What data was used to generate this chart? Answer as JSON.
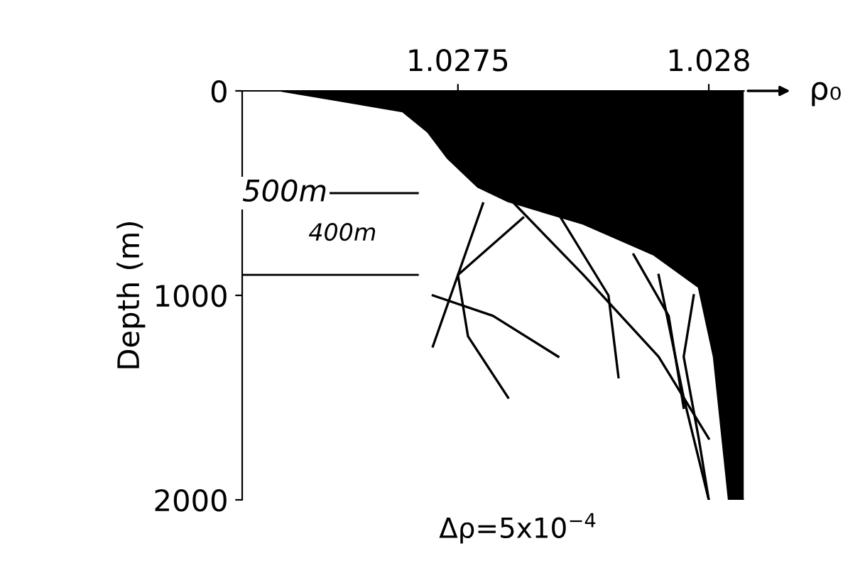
{
  "chart_data": {
    "type": "line",
    "xlabel": "ρ₀",
    "ylabel": "Depth (m)",
    "xlim": [
      1.02707,
      1.02807
    ],
    "xticks": [
      1.0275,
      1.028
    ],
    "ylim": [
      2000,
      0
    ],
    "yticks": [
      0,
      1000,
      2000
    ],
    "grid": false,
    "legend": false,
    "marker": "none",
    "line_style": "solid",
    "series": [
      {
        "type": "area",
        "color": "#000000",
        "values": [
          0,
          100,
          200,
          330,
          470,
          540,
          650,
          800,
          960,
          1300,
          2000,
          2000
        ],
        "x": [
          1.02715,
          1.02739,
          1.02744,
          1.02748,
          1.02754,
          1.0276,
          1.02775,
          1.02789,
          1.02798,
          1.02801,
          1.02804,
          1.02807
        ]
      },
      {
        "color": "#000000",
        "x": [
          1.02755,
          1.0275,
          1.02752,
          1.0276
        ],
        "values": [
          550,
          900,
          1200,
          1500
        ]
      },
      {
        "color": "#000000",
        "x": [
          1.0276,
          1.02775,
          1.0279,
          1.028
        ],
        "values": [
          520,
          900,
          1300,
          1700
        ]
      },
      {
        "color": "#000000",
        "x": [
          1.0277,
          1.0278,
          1.02782
        ],
        "values": [
          600,
          1000,
          1400
        ]
      },
      {
        "color": "#000000",
        "x": [
          1.02763,
          1.0275,
          1.02745
        ],
        "values": [
          620,
          900,
          1250
        ]
      },
      {
        "color": "#000000",
        "x": [
          1.02797,
          1.02795,
          1.02798,
          1.028
        ],
        "values": [
          1000,
          1300,
          1700,
          2000
        ]
      },
      {
        "color": "#000000",
        "x": [
          1.0279,
          1.02795,
          1.028
        ],
        "values": [
          900,
          1500,
          2000
        ]
      },
      {
        "color": "#000000",
        "x": [
          1.02745,
          1.02757,
          1.0277
        ],
        "values": [
          1000,
          1100,
          1300
        ]
      },
      {
        "color": "#000000",
        "x": [
          1.02785,
          1.02792,
          1.02795
        ],
        "values": [
          800,
          1100,
          1550
        ]
      }
    ],
    "ref_lines": [
      {
        "axis": "y",
        "value": 500,
        "label": "500m",
        "color": "#000000"
      },
      {
        "axis": "y",
        "value": 900,
        "color": "#000000"
      }
    ],
    "annotations": [
      "400m",
      "Δρ=5x10$^{−4}$"
    ]
  }
}
